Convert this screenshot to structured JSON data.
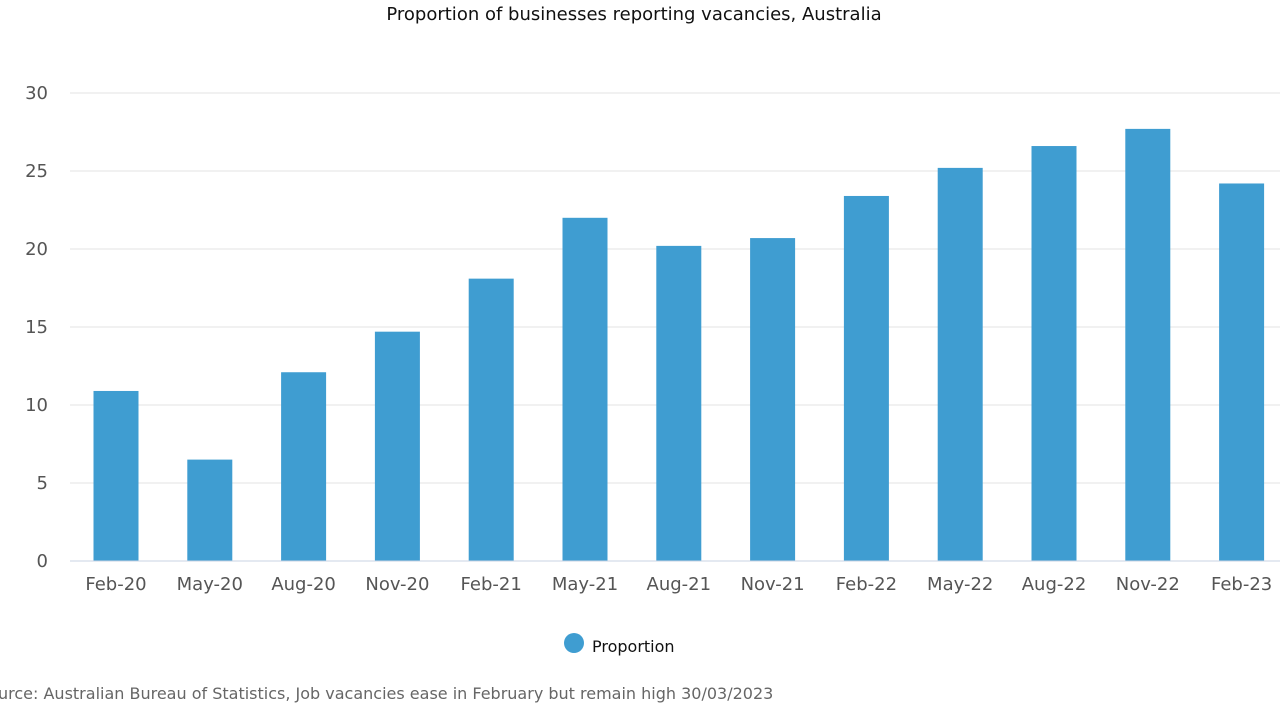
{
  "chart_data": {
    "type": "bar",
    "title": "Proportion of businesses reporting vacancies, Australia",
    "xlabel": "",
    "ylabel": "",
    "categories": [
      "Feb-20",
      "May-20",
      "Aug-20",
      "Nov-20",
      "Feb-21",
      "May-21",
      "Aug-21",
      "Nov-21",
      "Feb-22",
      "May-22",
      "Aug-22",
      "Nov-22",
      "Feb-23"
    ],
    "series": [
      {
        "name": "Proportion",
        "color": "#3f9dd1",
        "values": [
          10.9,
          6.5,
          12.1,
          14.7,
          18.1,
          22.0,
          20.2,
          20.7,
          23.4,
          25.2,
          26.6,
          27.7,
          24.2
        ]
      }
    ],
    "ylim": [
      0,
      30
    ],
    "yticks": [
      0,
      5,
      10,
      15,
      20,
      25,
      30
    ],
    "grid": true,
    "legend": "bottom-center"
  },
  "source": "urce: Australian Bureau of Statistics, Job vacancies ease in February but remain high 30/03/2023",
  "colors": {
    "bar": "#3f9dd1",
    "grid": "#e3e3e3",
    "text": "#555555"
  }
}
